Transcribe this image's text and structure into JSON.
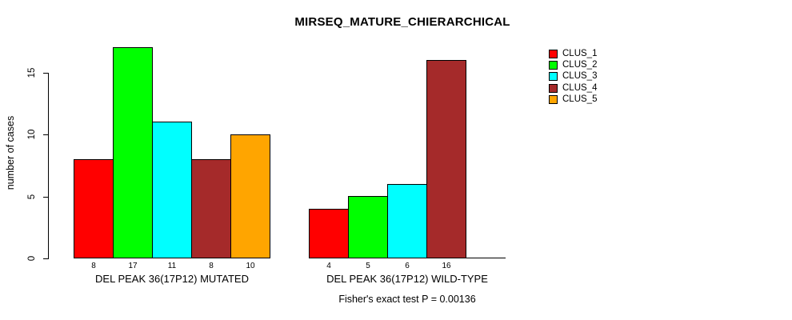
{
  "chart_data": {
    "type": "bar",
    "title": "MIRSEQ_MATURE_CHIERARCHICAL",
    "ylabel": "number of cases",
    "xlabel": "",
    "ylim": [
      0,
      17
    ],
    "yticks": [
      0,
      5,
      10,
      15
    ],
    "grid": false,
    "legend_position": "right-outside",
    "bar_value_labels_shown": true,
    "series": [
      {
        "name": "CLUS_1",
        "color": "#FF0000"
      },
      {
        "name": "CLUS_2",
        "color": "#00FF00"
      },
      {
        "name": "CLUS_3",
        "color": "#00FFFF"
      },
      {
        "name": "CLUS_4",
        "color": "#A52A2A"
      },
      {
        "name": "CLUS_5",
        "color": "#FFA500"
      }
    ],
    "groups": [
      {
        "label": "DEL PEAK 36(17P12) MUTATED",
        "values": [
          8,
          17,
          11,
          8,
          10
        ]
      },
      {
        "label": "DEL PEAK 36(17P12) WILD-TYPE",
        "values": [
          4,
          5,
          6,
          16,
          0
        ]
      }
    ],
    "annotation": "Fisher's exact test P = 0.00136"
  }
}
